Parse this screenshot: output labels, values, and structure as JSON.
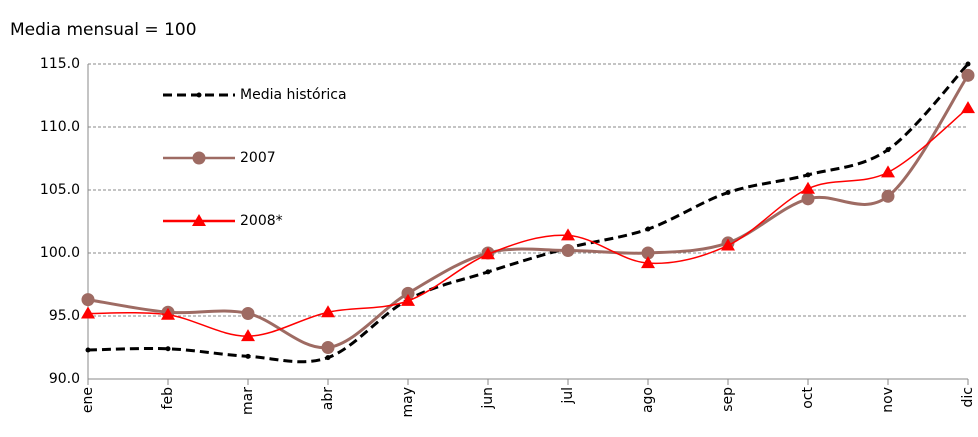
{
  "chart_data": {
    "type": "line",
    "title": "Media mensual = 100",
    "categories": [
      "ene",
      "feb",
      "mar",
      "abr",
      "may",
      "jun",
      "jul",
      "ago",
      "sep",
      "oct",
      "nov",
      "dic"
    ],
    "series": [
      {
        "name": "Media histórica",
        "color": "#000000",
        "marker": "dot",
        "dash": true,
        "values": [
          92.3,
          92.4,
          91.8,
          91.7,
          96.3,
          98.5,
          100.4,
          101.9,
          104.8,
          106.2,
          108.2,
          115.0
        ]
      },
      {
        "name": "2007",
        "color": "#9e6b63",
        "marker": "circle",
        "dash": false,
        "values": [
          96.3,
          95.3,
          95.2,
          92.5,
          96.8,
          100.0,
          100.2,
          100.0,
          100.8,
          104.3,
          104.5,
          114.1
        ]
      },
      {
        "name": "2008*",
        "color": "#ff0000",
        "marker": "triangle",
        "dash": false,
        "values": [
          95.2,
          95.1,
          93.4,
          95.3,
          96.2,
          99.9,
          101.4,
          99.2,
          100.6,
          105.1,
          106.4,
          111.5
        ]
      }
    ],
    "ylim": [
      90,
      115
    ],
    "yticks": [
      {
        "value": 90,
        "label": "90.0"
      },
      {
        "value": 95,
        "label": "95.0"
      },
      {
        "value": 100,
        "label": "100.0"
      },
      {
        "value": 105,
        "label": "105.0"
      },
      {
        "value": 110,
        "label": "110.0"
      },
      {
        "value": 115,
        "label": "115.0"
      }
    ],
    "grid": true,
    "legend": "top-left"
  }
}
